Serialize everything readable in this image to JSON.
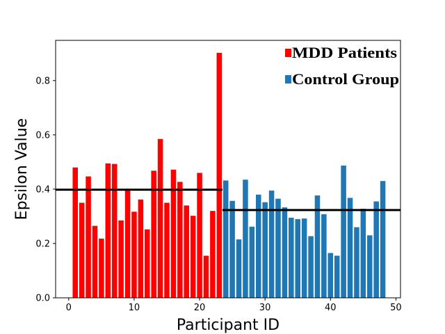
{
  "chart_data": {
    "type": "bar",
    "title": "",
    "xlabel": "Participant ID",
    "ylabel": "Epsilon Value",
    "xlim": [
      -2,
      50.7
    ],
    "ylim": [
      0,
      0.948
    ],
    "x_ticks": [
      0,
      10,
      20,
      30,
      40,
      50
    ],
    "y_ticks": [
      0.0,
      0.2,
      0.4,
      0.6,
      0.8
    ],
    "x_tick_labels": [
      "0",
      "10",
      "20",
      "30",
      "40",
      "50"
    ],
    "y_tick_labels": [
      "0.0",
      "0.2",
      "0.4",
      "0.6",
      "0.8"
    ],
    "legend_position": "top-right",
    "series": [
      {
        "name": "MDD Patients",
        "color": "#ff0000",
        "x": [
          1,
          2,
          3,
          4,
          5,
          6,
          7,
          8,
          9,
          10,
          11,
          12,
          13,
          14,
          15,
          16,
          17,
          18,
          19,
          20,
          21,
          22,
          23
        ],
        "values": [
          0.48,
          0.35,
          0.447,
          0.265,
          0.218,
          0.495,
          0.493,
          0.285,
          0.395,
          0.317,
          0.362,
          0.252,
          0.468,
          0.585,
          0.35,
          0.472,
          0.427,
          0.34,
          0.302,
          0.46,
          0.155,
          0.32,
          0.902
        ],
        "mean": 0.398
      },
      {
        "name": "Control Group",
        "color": "#1f77b4",
        "x": [
          24,
          25,
          26,
          27,
          28,
          29,
          30,
          31,
          32,
          33,
          34,
          35,
          36,
          37,
          38,
          39,
          40,
          41,
          42,
          43,
          44,
          45,
          46,
          47,
          48
        ],
        "values": [
          0.432,
          0.357,
          0.215,
          0.435,
          0.262,
          0.38,
          0.352,
          0.395,
          0.365,
          0.333,
          0.295,
          0.29,
          0.292,
          0.227,
          0.377,
          0.308,
          0.165,
          0.155,
          0.487,
          0.368,
          0.26,
          0.328,
          0.23,
          0.355,
          0.43
        ],
        "mean": 0.323
      }
    ]
  }
}
